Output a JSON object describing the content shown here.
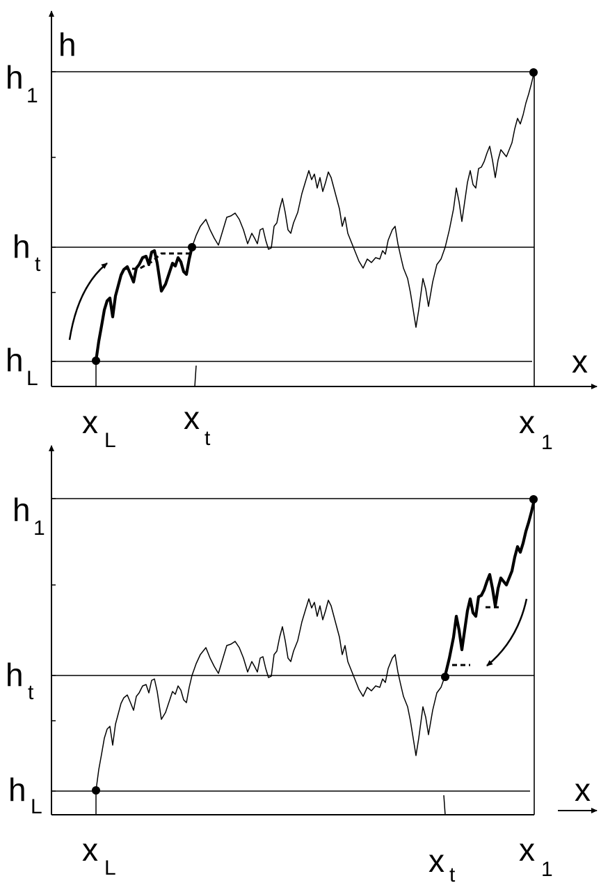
{
  "top_panel": {
    "axis_x": "x",
    "axis_y": "h",
    "h_levels": [
      {
        "main": "h",
        "sub": "1"
      },
      {
        "main": "h",
        "sub": "t"
      },
      {
        "main": "h",
        "sub": "L"
      }
    ],
    "x_marks": [
      {
        "main": "x",
        "sub": "L"
      },
      {
        "main": "x",
        "sub": "t"
      },
      {
        "main": "x",
        "sub": "1"
      }
    ]
  },
  "bottom_panel": {
    "axis_x": "x",
    "h_levels": [
      {
        "main": "h",
        "sub": "1"
      },
      {
        "main": "h",
        "sub": "t"
      },
      {
        "main": "h",
        "sub": "L"
      }
    ],
    "x_marks": [
      {
        "main": "x",
        "sub": "L"
      },
      {
        "main": "x",
        "sub": "t"
      },
      {
        "main": "x",
        "sub": "1"
      }
    ]
  }
}
